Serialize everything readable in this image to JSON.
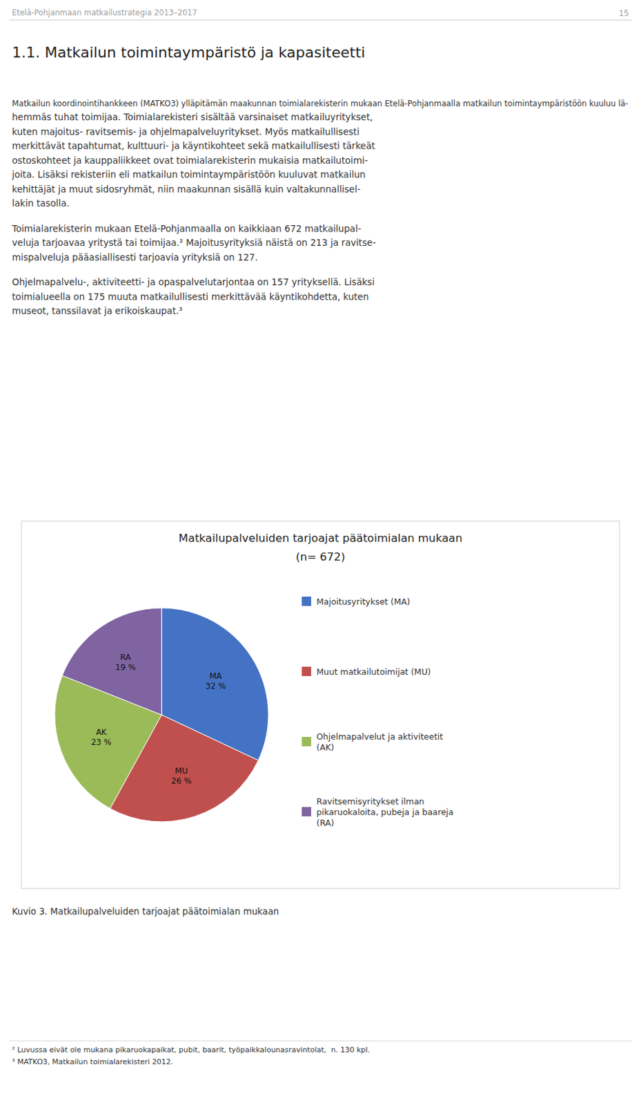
{
  "page_header": "Etelä-Pohjanmaan matkailustrategia 2013–2017",
  "page_number": "15",
  "section_title": "1.1. Matkailun toimintaympäristö ja kapasiteetti",
  "paragraphs": [
    [
      "Matkailun koordinointihankkeen (MATKO3) ylläpitämän maakunnan toimialarekisterin mukaan Etelä-Pohjanmaalla matkailun toimintaympäristöön kuuluu lä-",
      "hemmäs tuhat toimijaa. Toimialarekisteri sisältää varsinaiset matkailuyritykset,",
      "kuten majoitus- ravitsemis- ja ohjelmapalveluyritykset. Myös matkailullisesti",
      "merkittävät tapahtumat, kulttuuri- ja käyntikohteet sekä matkailullisesti tärkeät",
      "ostoskohteet ja kauppaliikkeet ovat toimialarekisterin mukaisia matkailutoimi-",
      "joita. Lisäksi rekisteriin eli matkailun toimintaympäristöön kuuluvat matkailun",
      "kehittäjät ja muut sidosryhmät, niin maakunnan sisällä kuin valtakunnallisel-",
      "lakin tasolla."
    ],
    [
      "Toimialarekisterin mukaan Etelä-Pohjanmaalla on kaikkiaan 672 matkailupal-",
      "veluja tarjoavaa yritystä tai toimijaa.² Majoitusyrityksiä näistä on 213 ja ravitse-",
      "mispalveluja pääasiallisesti tarjoavia yrityksiä on 127."
    ],
    [
      "Ohjelmapalvelu-, aktiviteetti- ja opaspalvelutarjontaa on 157 yrityksellä. Lisäksi",
      "toimialueella on 175 muuta matkailullisesti merkittävää käyntikohdetta, kuten",
      "museot, tanssilavat ja erikoiskaupat.³"
    ]
  ],
  "chart_data": {
    "type": "pie",
    "title": "Matkailupalveluiden tarjoajat päätoimialan mukaan",
    "subtitle": "(n= 672)",
    "categories": [
      "Majoitusyritykset (MA)",
      "Muut matkailutoimijat (MU)",
      "Ohjelmapalvelut ja aktiviteetit\n(AK)",
      "Ravitsemisyritykset ilman\npikaruokaloita, pubeja ja baareja\n(RA)"
    ],
    "values": [
      32,
      26,
      23,
      19
    ],
    "labels": [
      "MA",
      "MU",
      "AK",
      "RA"
    ],
    "value_labels": [
      "32 %",
      "26 %",
      "23 %",
      "19 %"
    ],
    "data_labels": true,
    "colors": [
      "#4472C4",
      "#C0504D",
      "#9BBB59",
      "#8064A2"
    ],
    "legend": "right"
  },
  "caption": "Kuvio 3. Matkailupalveluiden tarjoajat päätoimialan mukaan",
  "footnotes": [
    "² Luvussa eivät ole mukana pikaruokapaikat, pubit, baarit, työpaikkalounasravintolat,  n. 130 kpl.",
    "³ MATKO3, Matkailun toimialarekisteri 2012."
  ]
}
